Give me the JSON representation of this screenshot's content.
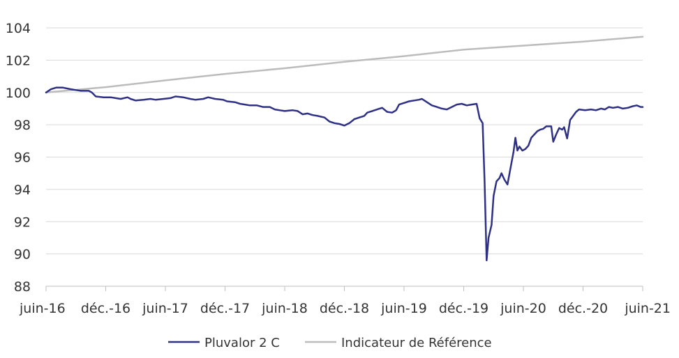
{
  "chart_data": {
    "type": "line",
    "title": "",
    "xlabel": "",
    "ylabel": "",
    "ylim": [
      88,
      104
    ],
    "yticks": [
      88,
      90,
      92,
      94,
      96,
      98,
      100,
      102,
      104
    ],
    "xlim": [
      0,
      60
    ],
    "xticks": [
      {
        "pos": 0,
        "label": "juin-16"
      },
      {
        "pos": 6,
        "label": "déc.-16"
      },
      {
        "pos": 12,
        "label": "juin-17"
      },
      {
        "pos": 18,
        "label": "déc.-17"
      },
      {
        "pos": 24,
        "label": "juin-18"
      },
      {
        "pos": 30,
        "label": "déc.-18"
      },
      {
        "pos": 36,
        "label": "juin-19"
      },
      {
        "pos": 42,
        "label": "déc.-19"
      },
      {
        "pos": 48,
        "label": "juin-20"
      },
      {
        "pos": 54,
        "label": "déc.-20"
      },
      {
        "pos": 60,
        "label": "juin-21"
      }
    ],
    "grid": true,
    "legend_position": "bottom",
    "series": [
      {
        "name": "Pluvalor 2 C",
        "color": "#2e3086",
        "points": [
          [
            0,
            100.0
          ],
          [
            0.5,
            100.2
          ],
          [
            1,
            100.3
          ],
          [
            1.7,
            100.3
          ],
          [
            2.5,
            100.2
          ],
          [
            3,
            100.15
          ],
          [
            3.5,
            100.1
          ],
          [
            4.3,
            100.1
          ],
          [
            4.6,
            100.0
          ],
          [
            5,
            99.75
          ],
          [
            5.8,
            99.7
          ],
          [
            6.5,
            99.7
          ],
          [
            7,
            99.65
          ],
          [
            7.5,
            99.6
          ],
          [
            8.2,
            99.7
          ],
          [
            8.5,
            99.6
          ],
          [
            9,
            99.5
          ],
          [
            9.8,
            99.55
          ],
          [
            10.5,
            99.6
          ],
          [
            11,
            99.55
          ],
          [
            11.8,
            99.6
          ],
          [
            12.5,
            99.65
          ],
          [
            13,
            99.75
          ],
          [
            13.8,
            99.7
          ],
          [
            14.5,
            99.6
          ],
          [
            15,
            99.55
          ],
          [
            15.8,
            99.6
          ],
          [
            16.3,
            99.7
          ],
          [
            17,
            99.6
          ],
          [
            17.8,
            99.55
          ],
          [
            18.2,
            99.45
          ],
          [
            19,
            99.4
          ],
          [
            19.5,
            99.3
          ],
          [
            20,
            99.25
          ],
          [
            20.5,
            99.2
          ],
          [
            21.2,
            99.2
          ],
          [
            21.8,
            99.1
          ],
          [
            22.5,
            99.1
          ],
          [
            23,
            98.95
          ],
          [
            23.5,
            98.9
          ],
          [
            24,
            98.85
          ],
          [
            24.8,
            98.9
          ],
          [
            25.3,
            98.85
          ],
          [
            25.8,
            98.65
          ],
          [
            26.3,
            98.7
          ],
          [
            26.8,
            98.6
          ],
          [
            27.3,
            98.55
          ],
          [
            28,
            98.45
          ],
          [
            28.5,
            98.2
          ],
          [
            29,
            98.1
          ],
          [
            29.5,
            98.05
          ],
          [
            30,
            97.95
          ],
          [
            30.5,
            98.1
          ],
          [
            31,
            98.35
          ],
          [
            31.5,
            98.45
          ],
          [
            32,
            98.55
          ],
          [
            32.3,
            98.75
          ],
          [
            32.8,
            98.85
          ],
          [
            33.3,
            98.95
          ],
          [
            33.8,
            99.05
          ],
          [
            34.3,
            98.8
          ],
          [
            34.8,
            98.75
          ],
          [
            35.2,
            98.9
          ],
          [
            35.5,
            99.25
          ],
          [
            36,
            99.35
          ],
          [
            36.5,
            99.45
          ],
          [
            37,
            99.5
          ],
          [
            37.5,
            99.55
          ],
          [
            37.8,
            99.6
          ],
          [
            38.3,
            99.4
          ],
          [
            38.8,
            99.2
          ],
          [
            39.3,
            99.1
          ],
          [
            39.8,
            99.0
          ],
          [
            40.3,
            98.95
          ],
          [
            40.8,
            99.1
          ],
          [
            41.3,
            99.25
          ],
          [
            41.8,
            99.3
          ],
          [
            42.3,
            99.2
          ],
          [
            42.8,
            99.25
          ],
          [
            43.3,
            99.3
          ],
          [
            43.6,
            98.4
          ],
          [
            43.9,
            98.1
          ],
          [
            44.1,
            94.5
          ],
          [
            44.3,
            89.6
          ],
          [
            44.5,
            91.0
          ],
          [
            44.8,
            91.8
          ],
          [
            45,
            93.6
          ],
          [
            45.3,
            94.5
          ],
          [
            45.6,
            94.7
          ],
          [
            45.8,
            95.0
          ],
          [
            46.1,
            94.6
          ],
          [
            46.4,
            94.3
          ],
          [
            46.7,
            95.3
          ],
          [
            47,
            96.3
          ],
          [
            47.2,
            97.2
          ],
          [
            47.4,
            96.4
          ],
          [
            47.6,
            96.65
          ],
          [
            47.9,
            96.4
          ],
          [
            48.2,
            96.5
          ],
          [
            48.5,
            96.7
          ],
          [
            48.8,
            97.2
          ],
          [
            49.1,
            97.4
          ],
          [
            49.4,
            97.6
          ],
          [
            49.7,
            97.7
          ],
          [
            50,
            97.75
          ],
          [
            50.3,
            97.9
          ],
          [
            50.8,
            97.9
          ],
          [
            51,
            96.95
          ],
          [
            51.3,
            97.4
          ],
          [
            51.6,
            97.8
          ],
          [
            51.9,
            97.7
          ],
          [
            52.1,
            97.85
          ],
          [
            52.4,
            97.15
          ],
          [
            52.7,
            98.3
          ],
          [
            53,
            98.55
          ],
          [
            53.3,
            98.8
          ],
          [
            53.6,
            98.95
          ],
          [
            54.2,
            98.9
          ],
          [
            54.8,
            98.95
          ],
          [
            55.3,
            98.9
          ],
          [
            55.8,
            99.0
          ],
          [
            56.2,
            98.95
          ],
          [
            56.6,
            99.1
          ],
          [
            57,
            99.05
          ],
          [
            57.5,
            99.1
          ],
          [
            58,
            99.0
          ],
          [
            58.5,
            99.05
          ],
          [
            59,
            99.15
          ],
          [
            59.4,
            99.2
          ],
          [
            59.8,
            99.1
          ],
          [
            60,
            99.1
          ]
        ]
      },
      {
        "name": "Indicateur de Référence",
        "color": "#bcbcbc",
        "points": [
          [
            0,
            100.0
          ],
          [
            6,
            100.33
          ],
          [
            12,
            100.75
          ],
          [
            18,
            101.15
          ],
          [
            24,
            101.5
          ],
          [
            30,
            101.9
          ],
          [
            36,
            102.25
          ],
          [
            42,
            102.65
          ],
          [
            48,
            102.9
          ],
          [
            54,
            103.15
          ],
          [
            60,
            103.45
          ]
        ]
      }
    ]
  }
}
